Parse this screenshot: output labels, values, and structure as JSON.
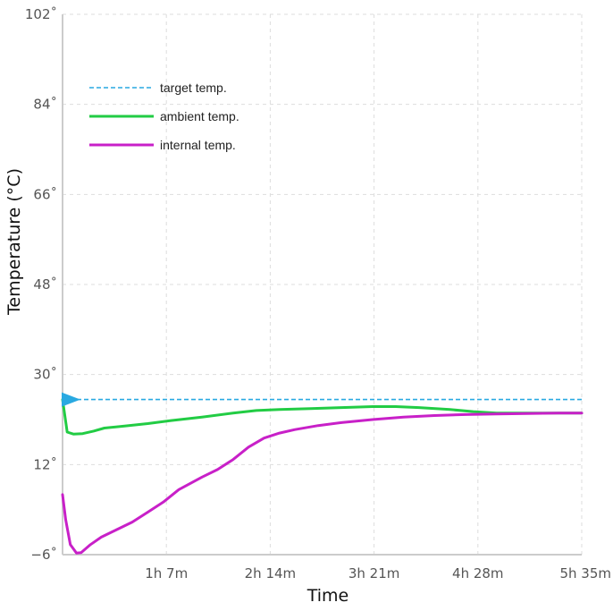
{
  "chart_data": {
    "type": "line",
    "title": "",
    "xlabel": "Time",
    "ylabel": "Temperature (°C)",
    "xlim_minutes": [
      0,
      335
    ],
    "ylim": [
      -6,
      102
    ],
    "y_ticks": [
      {
        "value": -6,
        "label": "−6˚"
      },
      {
        "value": 12,
        "label": "12˚"
      },
      {
        "value": 30,
        "label": "30˚"
      },
      {
        "value": 48,
        "label": "48˚"
      },
      {
        "value": 66,
        "label": "66˚"
      },
      {
        "value": 84,
        "label": "84˚"
      },
      {
        "value": 102,
        "label": "102˚"
      }
    ],
    "x_ticks": [
      {
        "value": 67,
        "label": "1h 7m"
      },
      {
        "value": 134,
        "label": "2h 14m"
      },
      {
        "value": 201,
        "label": "3h 21m"
      },
      {
        "value": 268,
        "label": "4h 28m"
      },
      {
        "value": 335,
        "label": "5h 35m"
      }
    ],
    "grid": true,
    "legend_position": "top-left",
    "target_marker": {
      "x": 0,
      "y": 25
    },
    "series": [
      {
        "name": "target temp.",
        "color": "#29a9e1",
        "style": "dashed",
        "points": [
          [
            0,
            25
          ],
          [
            335,
            25
          ]
        ]
      },
      {
        "name": "ambient temp.",
        "color": "#22cc44",
        "style": "solid",
        "points": [
          [
            0,
            25
          ],
          [
            3,
            18.5
          ],
          [
            7,
            18.1
          ],
          [
            13,
            18.2
          ],
          [
            20,
            18.7
          ],
          [
            27,
            19.3
          ],
          [
            40,
            19.7
          ],
          [
            55,
            20.2
          ],
          [
            70,
            20.8
          ],
          [
            90,
            21.5
          ],
          [
            110,
            22.3
          ],
          [
            125,
            22.8
          ],
          [
            140,
            23.0
          ],
          [
            160,
            23.2
          ],
          [
            180,
            23.4
          ],
          [
            200,
            23.6
          ],
          [
            215,
            23.6
          ],
          [
            230,
            23.4
          ],
          [
            250,
            23.0
          ],
          [
            265,
            22.6
          ],
          [
            280,
            22.3
          ],
          [
            300,
            22.3
          ],
          [
            320,
            22.3
          ],
          [
            335,
            22.3
          ]
        ]
      },
      {
        "name": "internal temp.",
        "color": "#c820c8",
        "style": "solid",
        "points": [
          [
            0,
            6
          ],
          [
            2,
            1
          ],
          [
            5,
            -4
          ],
          [
            9,
            -5.7
          ],
          [
            12,
            -5.6
          ],
          [
            18,
            -4
          ],
          [
            25,
            -2.5
          ],
          [
            35,
            -1
          ],
          [
            45,
            0.5
          ],
          [
            55,
            2.5
          ],
          [
            65,
            4.5
          ],
          [
            75,
            7
          ],
          [
            90,
            9.5
          ],
          [
            100,
            11
          ],
          [
            110,
            13
          ],
          [
            120,
            15.5
          ],
          [
            130,
            17.3
          ],
          [
            140,
            18.3
          ],
          [
            150,
            19
          ],
          [
            165,
            19.8
          ],
          [
            180,
            20.4
          ],
          [
            200,
            21
          ],
          [
            220,
            21.5
          ],
          [
            240,
            21.8
          ],
          [
            260,
            22
          ],
          [
            280,
            22.1
          ],
          [
            300,
            22.2
          ],
          [
            320,
            22.3
          ],
          [
            335,
            22.3
          ]
        ]
      }
    ]
  }
}
